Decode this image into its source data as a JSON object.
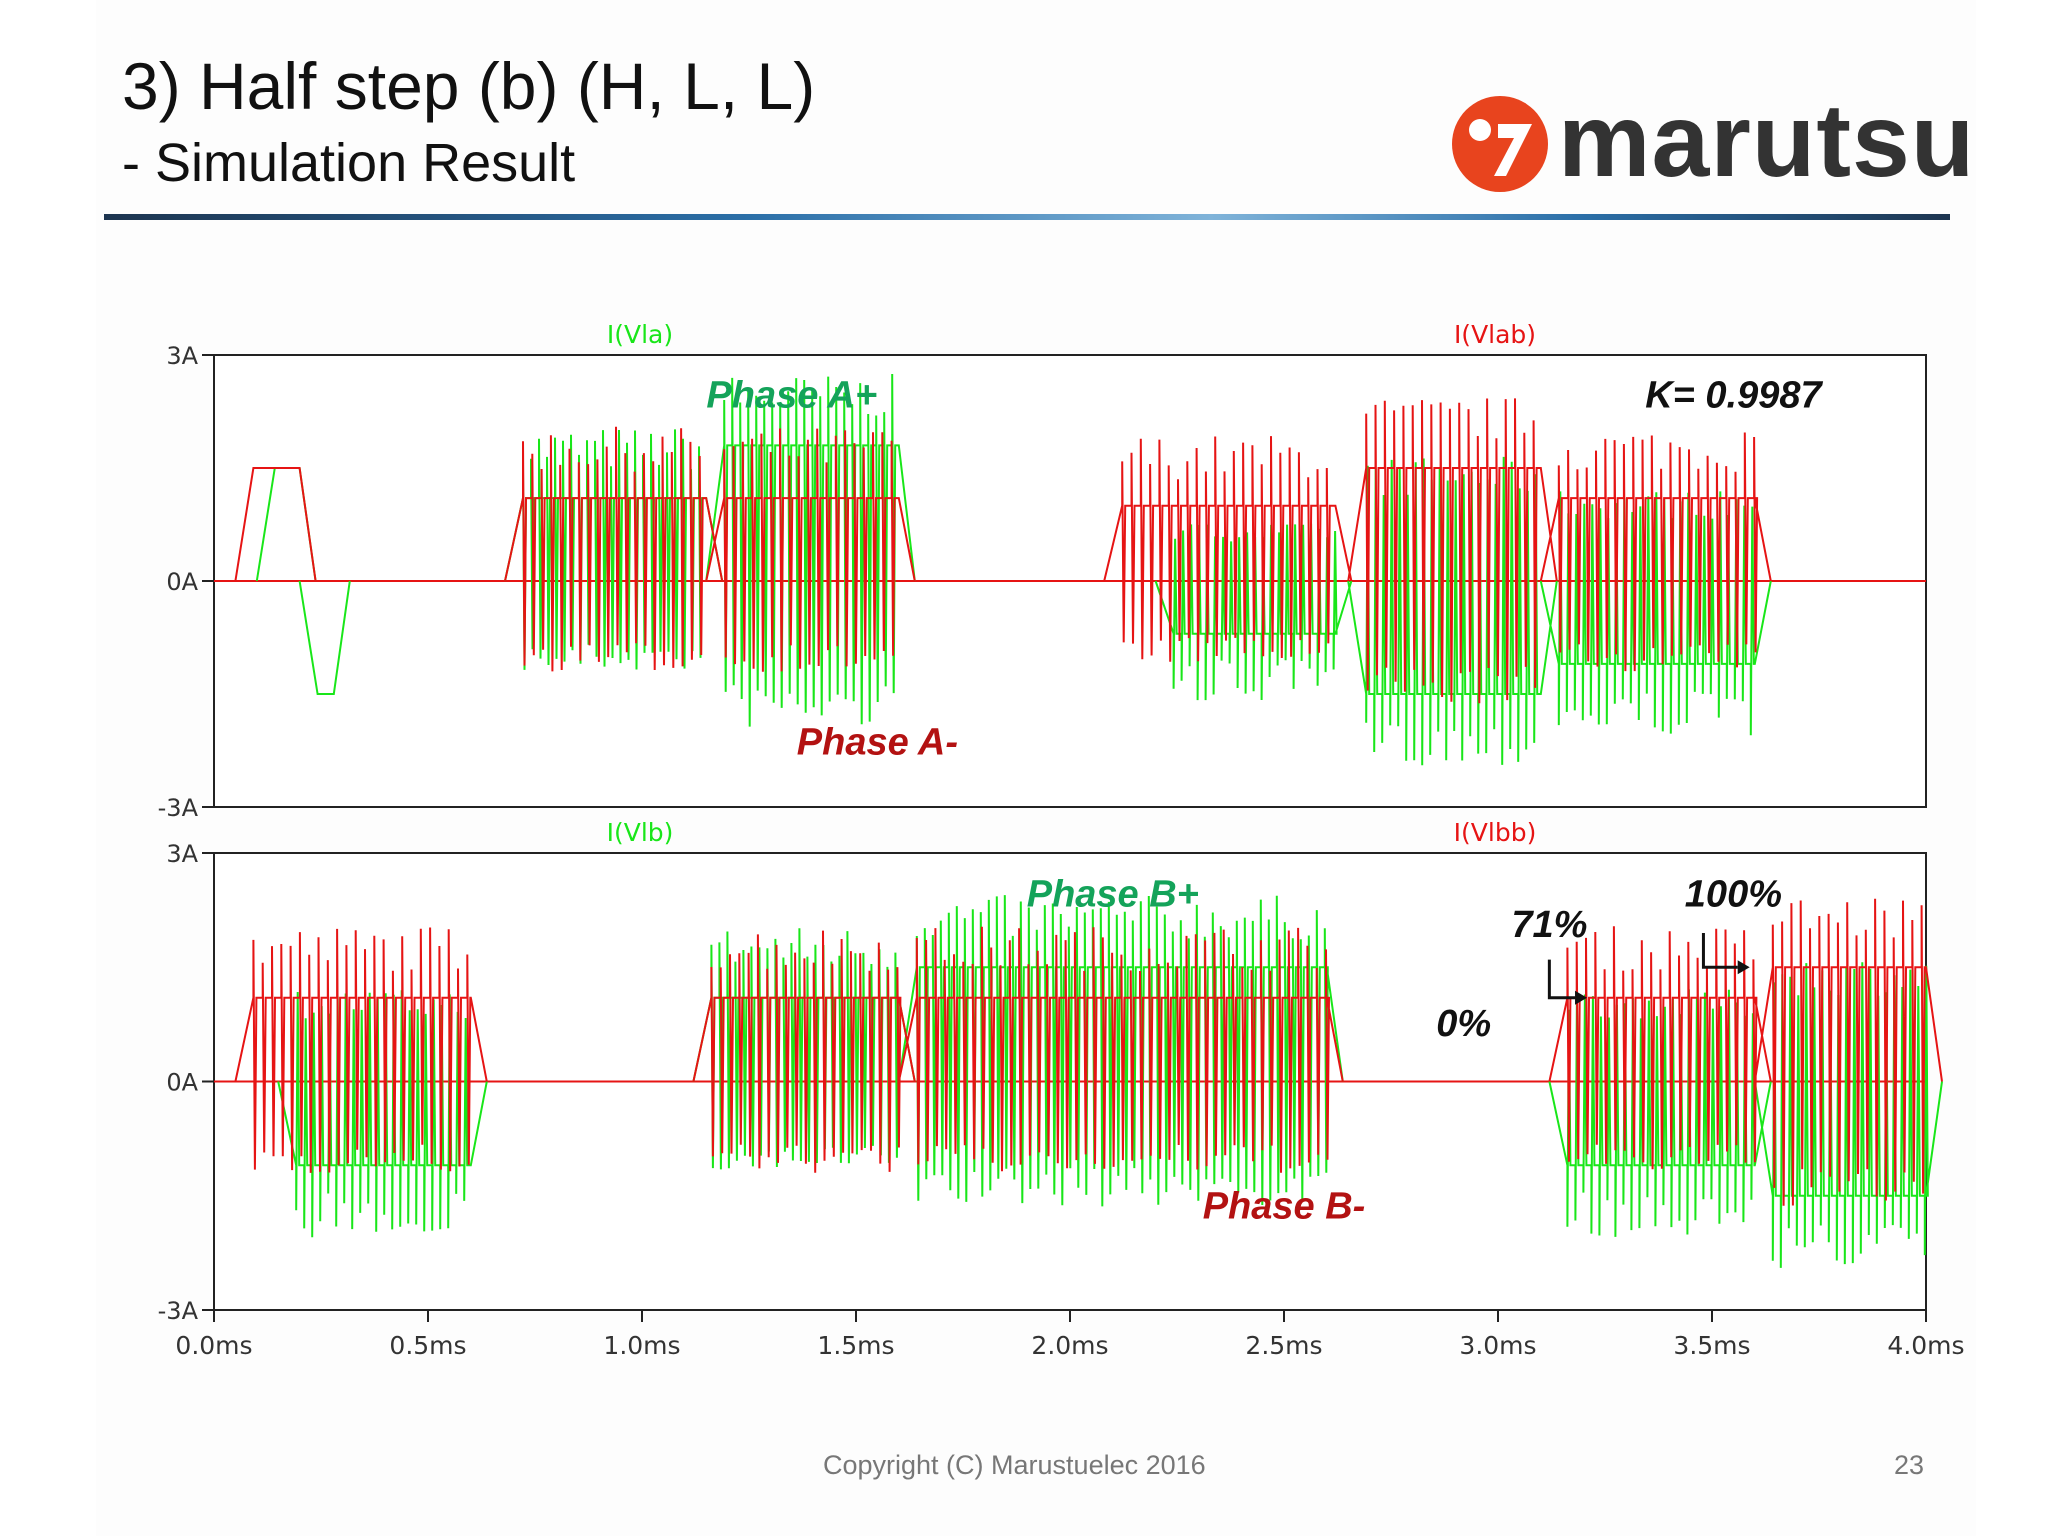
{
  "slide": {
    "title": "3) Half step (b) (H, L, L)",
    "subtitle": "- Simulation Result",
    "logo_text": "marutsu",
    "copyright": "Copyright (C) Marustuelec 2016",
    "page_number": "23"
  },
  "colors": {
    "green_trace": "#19e619",
    "red_trace": "#e61414",
    "green_label": "#14a35a",
    "red_label": "#b31212",
    "axis": "#222222",
    "logo_red": "#e8441e"
  },
  "chart_data": [
    {
      "type": "line",
      "panel": "top",
      "xlim": [
        0,
        4.0
      ],
      "ylim": [
        -3,
        3
      ],
      "y_ticks": [
        {
          "value": 3,
          "label": "3A"
        },
        {
          "value": 0,
          "label": "0A"
        },
        {
          "value": -3,
          "label": "-3A"
        }
      ],
      "series": [
        {
          "name": "I(Vla)",
          "color": "green",
          "segments": [
            {
              "x0": 0.1,
              "x1": 0.2,
              "base": 1.5,
              "pwm": false
            },
            {
              "x0": 0.2,
              "x1": 0.28,
              "base": -1.5,
              "pwm": false
            },
            {
              "x0": 0.68,
              "x1": 1.15,
              "base": 1.1,
              "pwm": true
            },
            {
              "x0": 1.15,
              "x1": 1.6,
              "base": 1.8,
              "pwm": true
            },
            {
              "x0": 2.2,
              "x1": 2.62,
              "base": -0.7,
              "pwm": true
            },
            {
              "x0": 2.65,
              "x1": 3.1,
              "base": -1.5,
              "pwm": true
            },
            {
              "x0": 3.1,
              "x1": 3.6,
              "base": -1.1,
              "pwm": true
            }
          ]
        },
        {
          "name": "I(Vlab)",
          "color": "red",
          "segments": [
            {
              "x0": 0.05,
              "x1": 0.2,
              "base": 1.5,
              "pwm": false
            },
            {
              "x0": 0.68,
              "x1": 1.15,
              "base": 1.1,
              "pwm": true
            },
            {
              "x0": 1.15,
              "x1": 1.6,
              "base": 1.1,
              "pwm": true
            },
            {
              "x0": 2.08,
              "x1": 2.62,
              "base": 1.0,
              "pwm": true
            },
            {
              "x0": 2.65,
              "x1": 3.1,
              "base": 1.5,
              "pwm": true
            },
            {
              "x0": 3.1,
              "x1": 3.6,
              "base": 1.1,
              "pwm": true
            }
          ]
        }
      ],
      "annotations": [
        {
          "text": "Phase A+",
          "color": "green",
          "x": 1.35,
          "y": 2.3
        },
        {
          "text": "Phase A-",
          "color": "red",
          "x": 1.55,
          "y": -2.3
        },
        {
          "text": "K= 0.9987",
          "color": "black",
          "x": 3.55,
          "y": 2.3
        }
      ]
    },
    {
      "type": "line",
      "panel": "bottom",
      "xlim": [
        0,
        4.0
      ],
      "ylim": [
        -3,
        3
      ],
      "x_ticks": [
        "0.0ms",
        "0.5ms",
        "1.0ms",
        "1.5ms",
        "2.0ms",
        "2.5ms",
        "3.0ms",
        "3.5ms",
        "4.0ms"
      ],
      "y_ticks": [
        {
          "value": 3,
          "label": "3A"
        },
        {
          "value": 0,
          "label": "0A"
        },
        {
          "value": -3,
          "label": "-3A"
        }
      ],
      "series": [
        {
          "name": "I(Vlb)",
          "color": "green",
          "segments": [
            {
              "x0": 0.15,
              "x1": 0.6,
              "base": -1.1,
              "pwm": true
            },
            {
              "x0": 1.12,
              "x1": 1.6,
              "base": 1.1,
              "pwm": true
            },
            {
              "x0": 1.6,
              "x1": 2.6,
              "base": 1.5,
              "pwm": true
            },
            {
              "x0": 3.12,
              "x1": 3.6,
              "base": -1.1,
              "pwm": true
            },
            {
              "x0": 3.6,
              "x1": 4.0,
              "base": -1.5,
              "pwm": true
            }
          ]
        },
        {
          "name": "I(Vlbb)",
          "color": "red",
          "segments": [
            {
              "x0": 0.05,
              "x1": 0.6,
              "base": 1.1,
              "pwm": true
            },
            {
              "x0": 1.12,
              "x1": 1.6,
              "base": 1.1,
              "pwm": true
            },
            {
              "x0": 1.6,
              "x1": 2.6,
              "base": 1.1,
              "pwm": true
            },
            {
              "x0": 3.12,
              "x1": 3.6,
              "base": 1.1,
              "pwm": true
            },
            {
              "x0": 3.6,
              "x1": 4.0,
              "base": 1.5,
              "pwm": true
            }
          ]
        }
      ],
      "annotations": [
        {
          "text": "Phase B+",
          "color": "green",
          "x": 2.1,
          "y": 2.3
        },
        {
          "text": "Phase B-",
          "color": "red",
          "x": 2.5,
          "y": -1.8
        },
        {
          "text": "0%",
          "color": "black",
          "x": 2.92,
          "y": 0.6
        },
        {
          "text": "71%",
          "color": "black",
          "x": 3.12,
          "y": 1.9
        },
        {
          "text": "100%",
          "color": "black",
          "x": 3.55,
          "y": 2.3
        }
      ]
    }
  ]
}
